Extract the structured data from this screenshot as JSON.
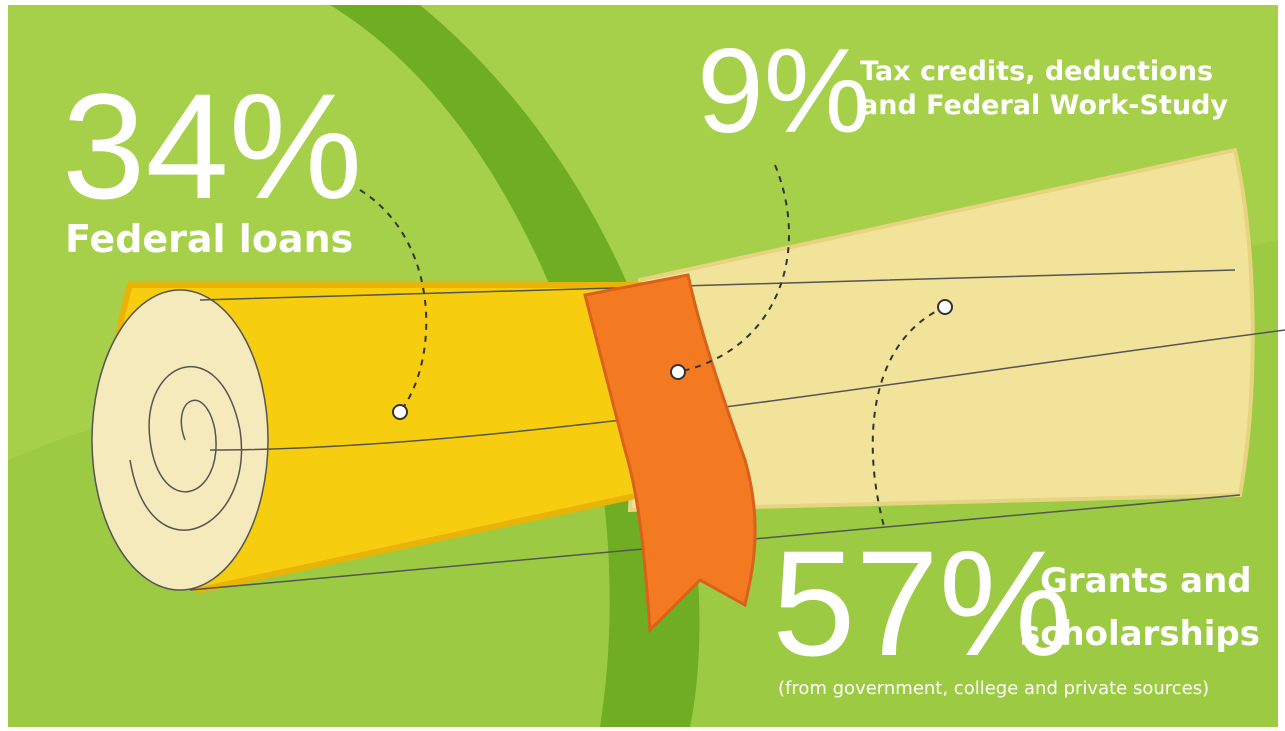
{
  "items": [
    {
      "percent": "34%",
      "label": "Federal loans"
    },
    {
      "percent": "9%",
      "label_lines": [
        "Tax credits, deductions",
        "and Federal Work-Study"
      ]
    },
    {
      "percent": "57%",
      "label_lines": [
        "Grants and",
        "scholarships"
      ],
      "note": "(from government, college and private sources)"
    }
  ]
}
